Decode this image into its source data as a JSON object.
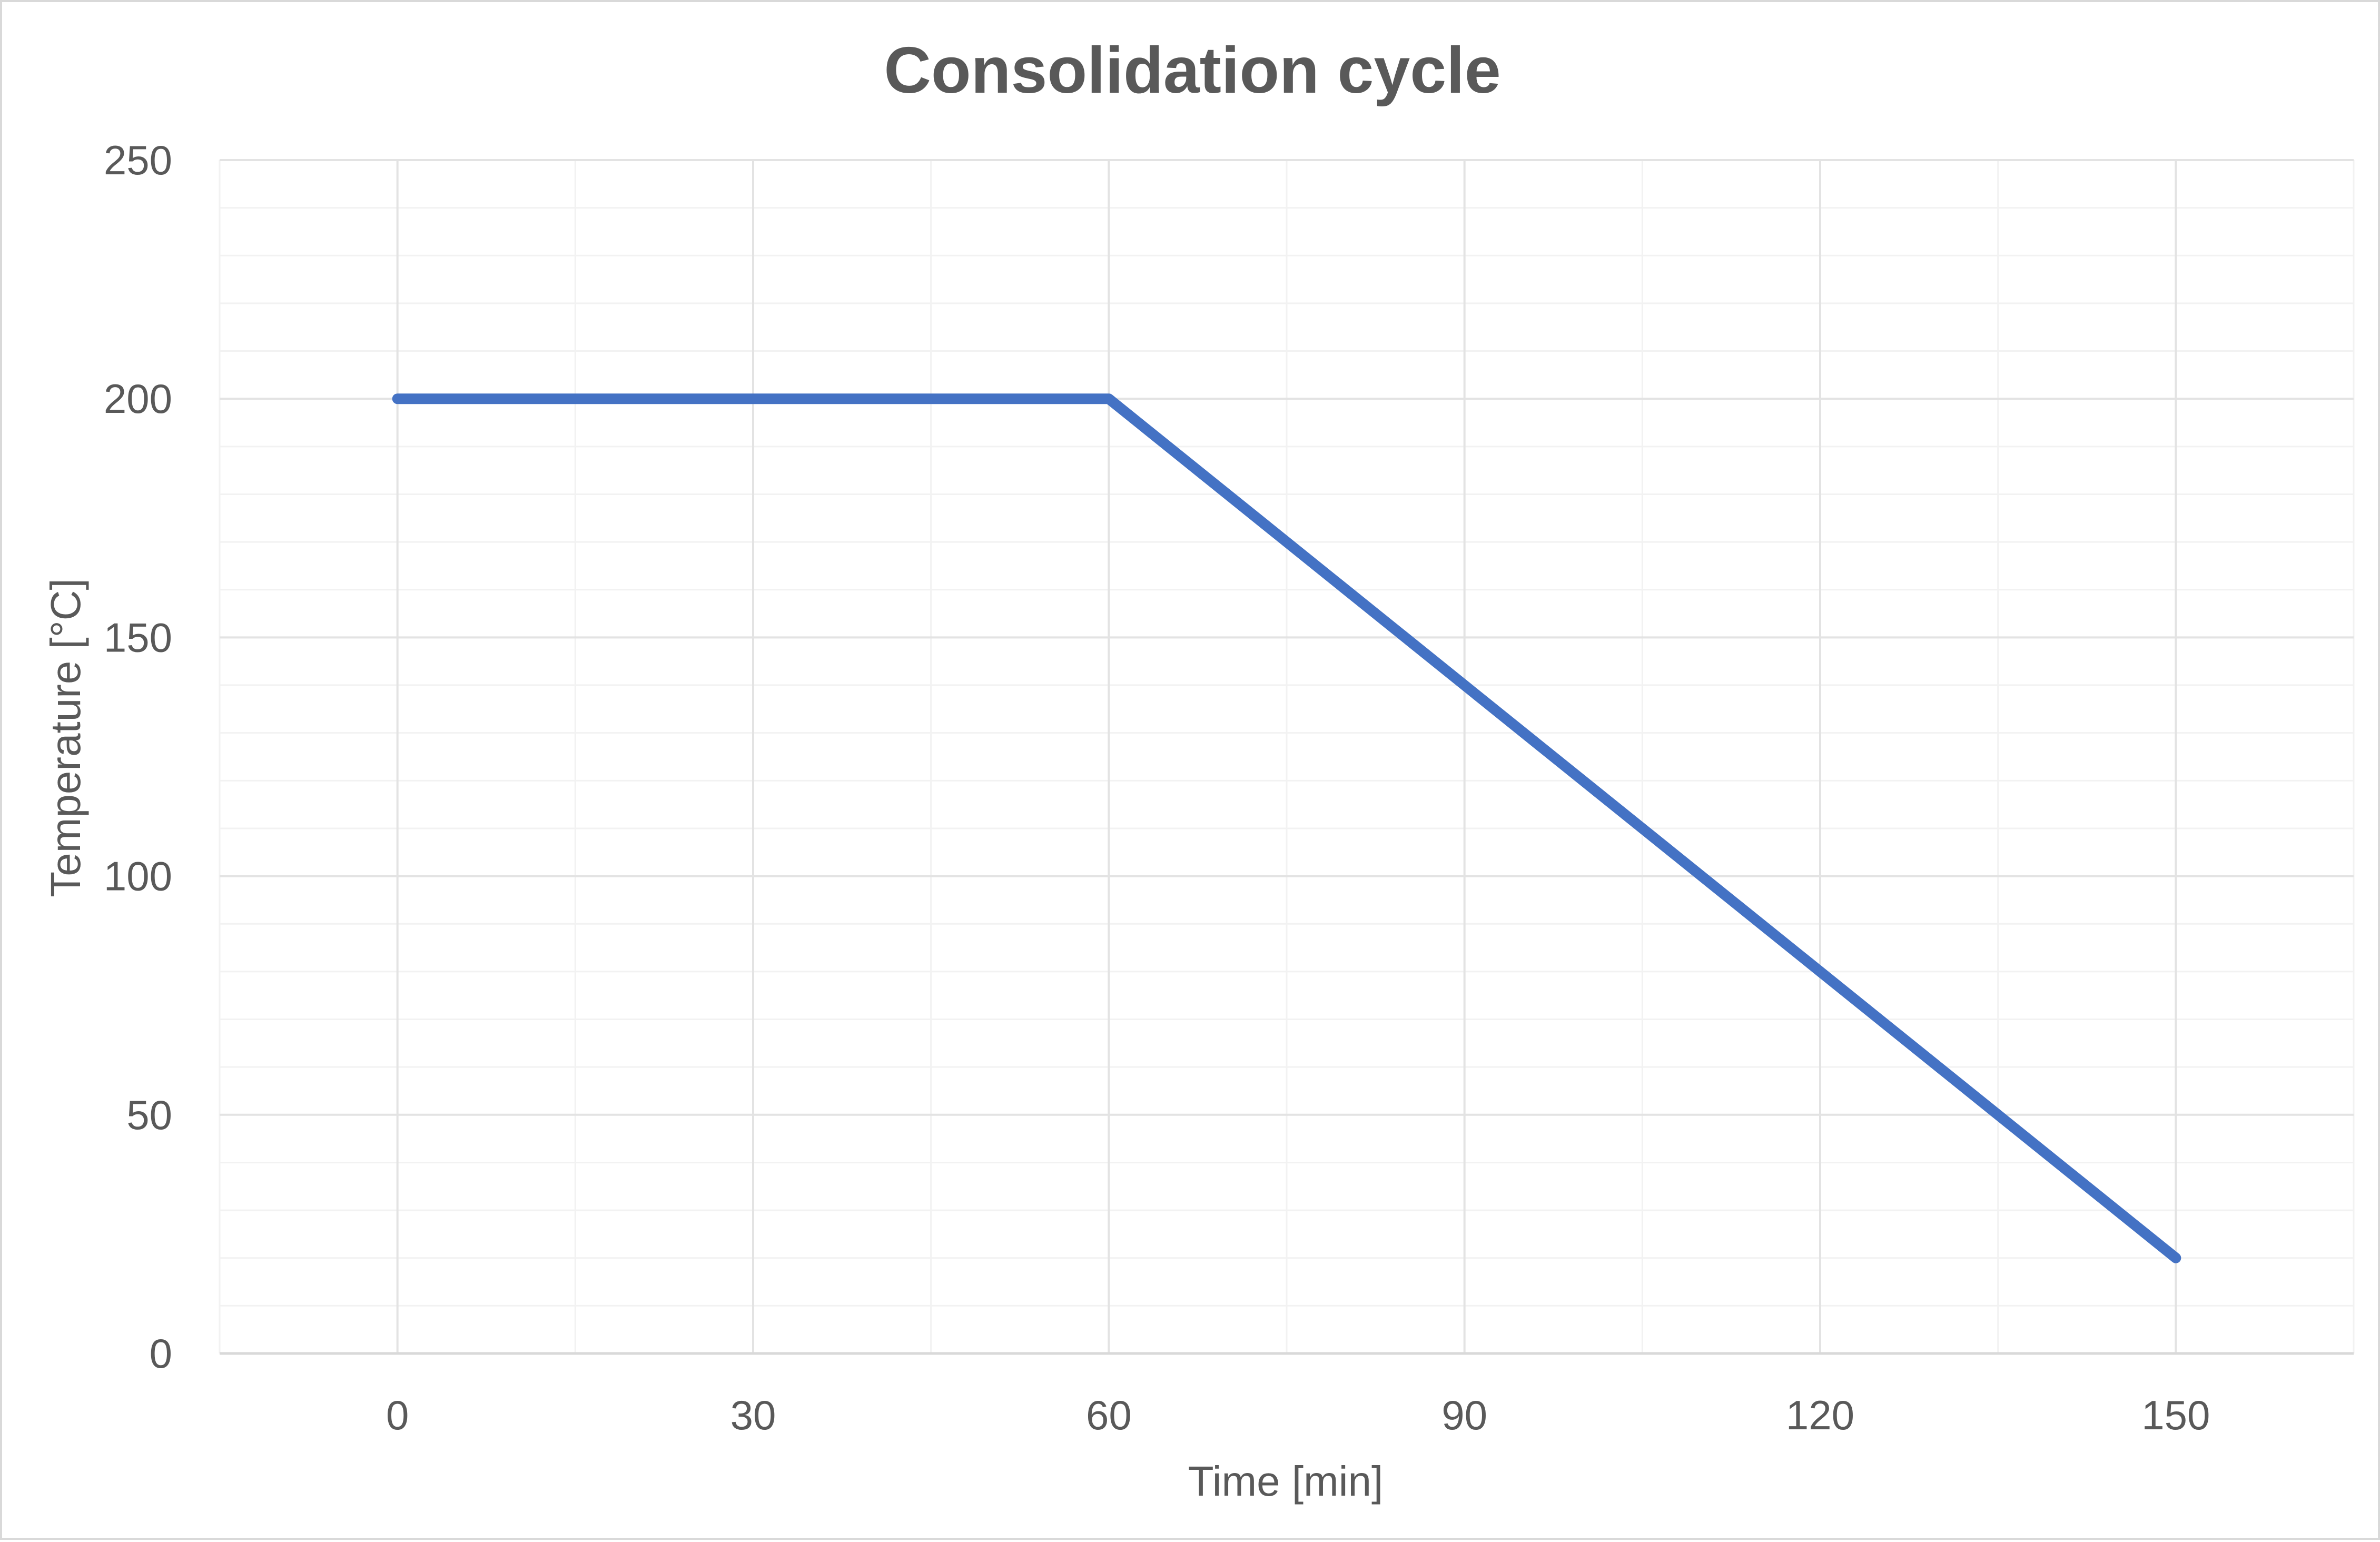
{
  "chart_data": {
    "type": "line",
    "title": "Consolidation cycle",
    "xlabel": "Time [min]",
    "ylabel": "Temperature [°C]",
    "xlim": [
      -15,
      165
    ],
    "ylim": [
      0,
      250
    ],
    "x_ticks": [
      0,
      30,
      60,
      90,
      120,
      150
    ],
    "y_ticks": [
      0,
      50,
      100,
      150,
      200,
      250
    ],
    "x_minor_step": 15,
    "y_minor_step": 10,
    "grid": true,
    "legend": "none",
    "series": [
      {
        "color": "#4472c4",
        "x": [
          0,
          60,
          150
        ],
        "y": [
          200,
          200,
          20
        ]
      }
    ]
  }
}
